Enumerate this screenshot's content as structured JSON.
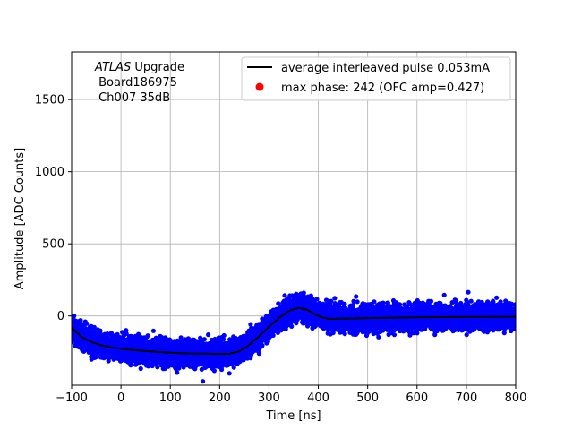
{
  "chart_data": {
    "type": "scatter",
    "xlabel": "Time [ns]",
    "ylabel": "Amplitude [ADC Counts]",
    "xlim": [
      -100,
      800
    ],
    "ylim": [
      -480,
      1830
    ],
    "xticks": [
      -100,
      0,
      100,
      200,
      300,
      400,
      500,
      600,
      700,
      800
    ],
    "yticks": [
      0,
      500,
      1000,
      1500
    ],
    "grid": true,
    "annotation": {
      "italic_part": "ATLAS",
      "line1_rest": " Upgrade",
      "line2": " Board186975",
      "line3": " Ch007 35dB"
    },
    "legend": {
      "location": "top-right",
      "entries": [
        {
          "label": "average interleaved pulse 0.053mA",
          "marker": "line",
          "color": "#000000"
        },
        {
          "label": "max phase: 242 (OFC amp=0.427)",
          "marker": "dot",
          "color": "#ff0000"
        }
      ]
    },
    "series": [
      {
        "name": "average interleaved pulse 0.053mA",
        "kind": "line",
        "color": "#000000",
        "x": [
          -100,
          -80,
          -60,
          -40,
          -20,
          0,
          20,
          40,
          60,
          80,
          100,
          120,
          140,
          160,
          180,
          200,
          220,
          240,
          260,
          280,
          300,
          320,
          340,
          360,
          370,
          380,
          390,
          400,
          410,
          420,
          430,
          450,
          500,
          550,
          600,
          650,
          700,
          750,
          800
        ],
        "y": [
          -80,
          -145,
          -180,
          -203,
          -218,
          -228,
          -235,
          -240,
          -245,
          -250,
          -255,
          -258,
          -260,
          -261,
          -262,
          -263,
          -262,
          -245,
          -200,
          -140,
          -75,
          -15,
          35,
          55,
          50,
          38,
          18,
          0,
          -12,
          -18,
          -20,
          -18,
          -15,
          -12,
          -10,
          -8,
          -7,
          -6,
          -5
        ]
      },
      {
        "name": "samples",
        "kind": "scatter",
        "color": "#0000ff",
        "points_per_ns": 12,
        "noise_sigma": 40
      }
    ]
  }
}
